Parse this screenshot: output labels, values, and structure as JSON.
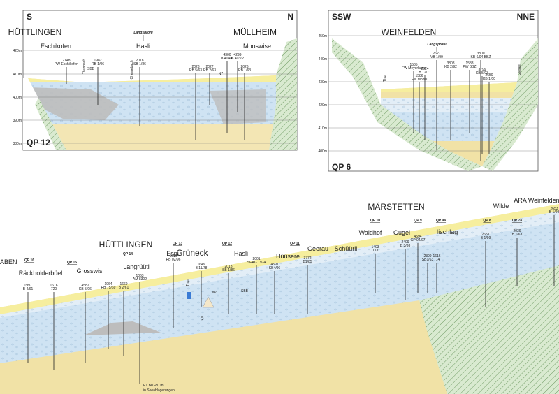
{
  "cross_sections": [
    {
      "label": "QP 12",
      "left": "S",
      "right": "N",
      "profile": "Längsprofil",
      "places": [
        "HÜTTLINGEN",
        "MÜLLHEIM",
        "Eschikofen",
        "Hasli",
        "Mooswise",
        "SBB",
        "N7",
        "Thunbach",
        "Chemebach"
      ],
      "elevations": [
        "420m",
        "410m",
        "400m",
        "390m",
        "380m"
      ],
      "boreholes": [
        [
          "2148",
          "PW Eschikofen"
        ],
        [
          "1982",
          "RB 1/06"
        ],
        [
          "2018",
          "SB 1/86"
        ],
        [
          "2028",
          "RB 5/63"
        ],
        [
          "2027",
          "RB 2/63"
        ],
        [
          "4300",
          "B 404/P"
        ],
        [
          "4299",
          "B 403/P"
        ],
        [
          "2026",
          "RB 1/63"
        ]
      ]
    },
    {
      "label": "QP 6",
      "left": "SSW",
      "right": "NNE",
      "profile": "Längsprofil",
      "places": [
        "WEINFELDEN",
        "Thur",
        "Giesse"
      ],
      "elevations": [
        "450m",
        "440m",
        "430m",
        "420m",
        "410m",
        "400m"
      ],
      "boreholes": [
        [
          "1585",
          "FW Meyerhans"
        ],
        [
          "2524",
          "B 12/71"
        ],
        [
          "1586",
          "FW Model"
        ],
        [
          "2627",
          "VB 1/99"
        ],
        [
          "3808",
          "KB 2/92"
        ],
        [
          "1588",
          "PW BBZ"
        ],
        [
          "3800",
          "KB 6/04 BBZ"
        ],
        [
          "3799",
          "KB 5/03"
        ],
        [
          "2650",
          "KB 1/00"
        ]
      ]
    }
  ],
  "longitudinal_section": {
    "labels": [
      "ABEN",
      "QP 16",
      "Räckholderbüel",
      "QP 15",
      "Grosswis",
      "QP 14",
      "Langrüüti",
      "HÜTTLINGEN",
      "QP 13",
      "Espi",
      "Grüneck",
      "QP 12",
      "Hasli",
      "QP 11",
      "Hüüsere",
      "Geerau",
      "Schüürli",
      "QP 10",
      "Waldhof",
      "MÄRSTETTEN",
      "QP 9",
      "Gugel",
      "QP 9a",
      "Iischlag",
      "QP 8",
      "Wilde",
      "QP 7a",
      "ARA Weinfelden",
      "Thur",
      "N7",
      "SBB",
      "?"
    ],
    "boreholes": [
      [
        "1997",
        "B 4/61"
      ],
      [
        "1616",
        "720"
      ],
      [
        "4582",
        "KB 5/06"
      ],
      [
        "1964",
        "RB 75/69"
      ],
      [
        "1669",
        "B 2/61"
      ],
      [
        "1063",
        "AM 8302"
      ],
      [
        "1966",
        "RB 02/96"
      ],
      [
        "1649",
        "B 11/78"
      ],
      [
        "2018",
        "SB 1/86"
      ],
      [
        "2001",
        "SEAG 1974"
      ],
      [
        "4591",
        "KB4/06"
      ],
      [
        "3772",
        "B1/85"
      ],
      [
        "1403",
        "T13"
      ],
      [
        "2409",
        "B 3/88"
      ],
      [
        "4594",
        "GP 04/07"
      ],
      [
        "2309",
        "SB1/63"
      ],
      [
        "1616",
        "T14"
      ],
      [
        "2651",
        "B 1/99"
      ],
      [
        "2039",
        "B 1/63"
      ],
      [
        "2653",
        "B 1/99"
      ]
    ],
    "note": [
      "ET bei -80 m",
      "in Seeablagerungen"
    ]
  }
}
